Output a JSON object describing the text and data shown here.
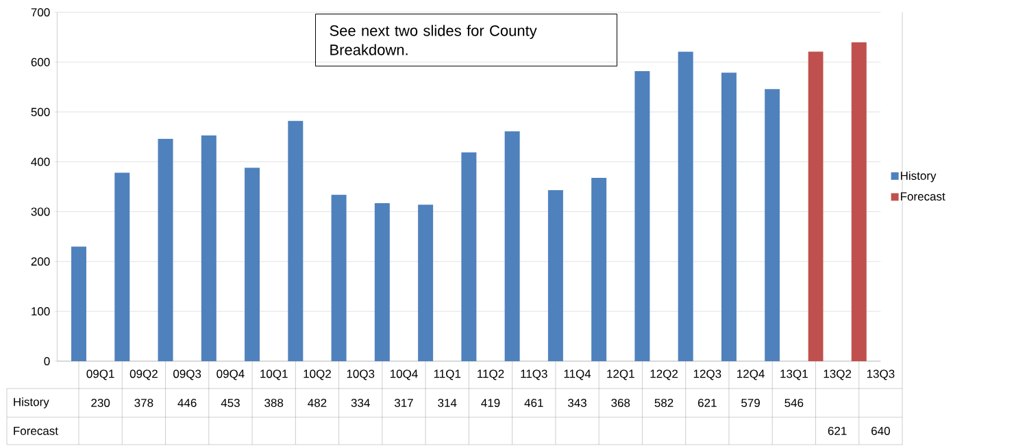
{
  "chart_data": {
    "type": "bar",
    "categories": [
      "09Q1",
      "09Q2",
      "09Q3",
      "09Q4",
      "10Q1",
      "10Q2",
      "10Q3",
      "10Q4",
      "11Q1",
      "11Q2",
      "11Q3",
      "11Q4",
      "12Q1",
      "12Q2",
      "12Q3",
      "12Q4",
      "13Q1",
      "13Q2",
      "13Q3"
    ],
    "series": [
      {
        "name": "History",
        "color": "#4f81bd",
        "values": [
          230,
          378,
          446,
          453,
          388,
          482,
          334,
          317,
          314,
          419,
          461,
          343,
          368,
          582,
          621,
          579,
          546,
          null,
          null
        ]
      },
      {
        "name": "Forecast",
        "color": "#c0504d",
        "values": [
          null,
          null,
          null,
          null,
          null,
          null,
          null,
          null,
          null,
          null,
          null,
          null,
          null,
          null,
          null,
          null,
          null,
          621,
          640
        ]
      }
    ],
    "ylim": [
      0,
      700
    ],
    "yticks": [
      0,
      100,
      200,
      300,
      400,
      500,
      600,
      700
    ],
    "grid": "y",
    "legend": "right",
    "data_labels": true,
    "annotations": [
      "See next two slides for County Breakdown."
    ]
  }
}
